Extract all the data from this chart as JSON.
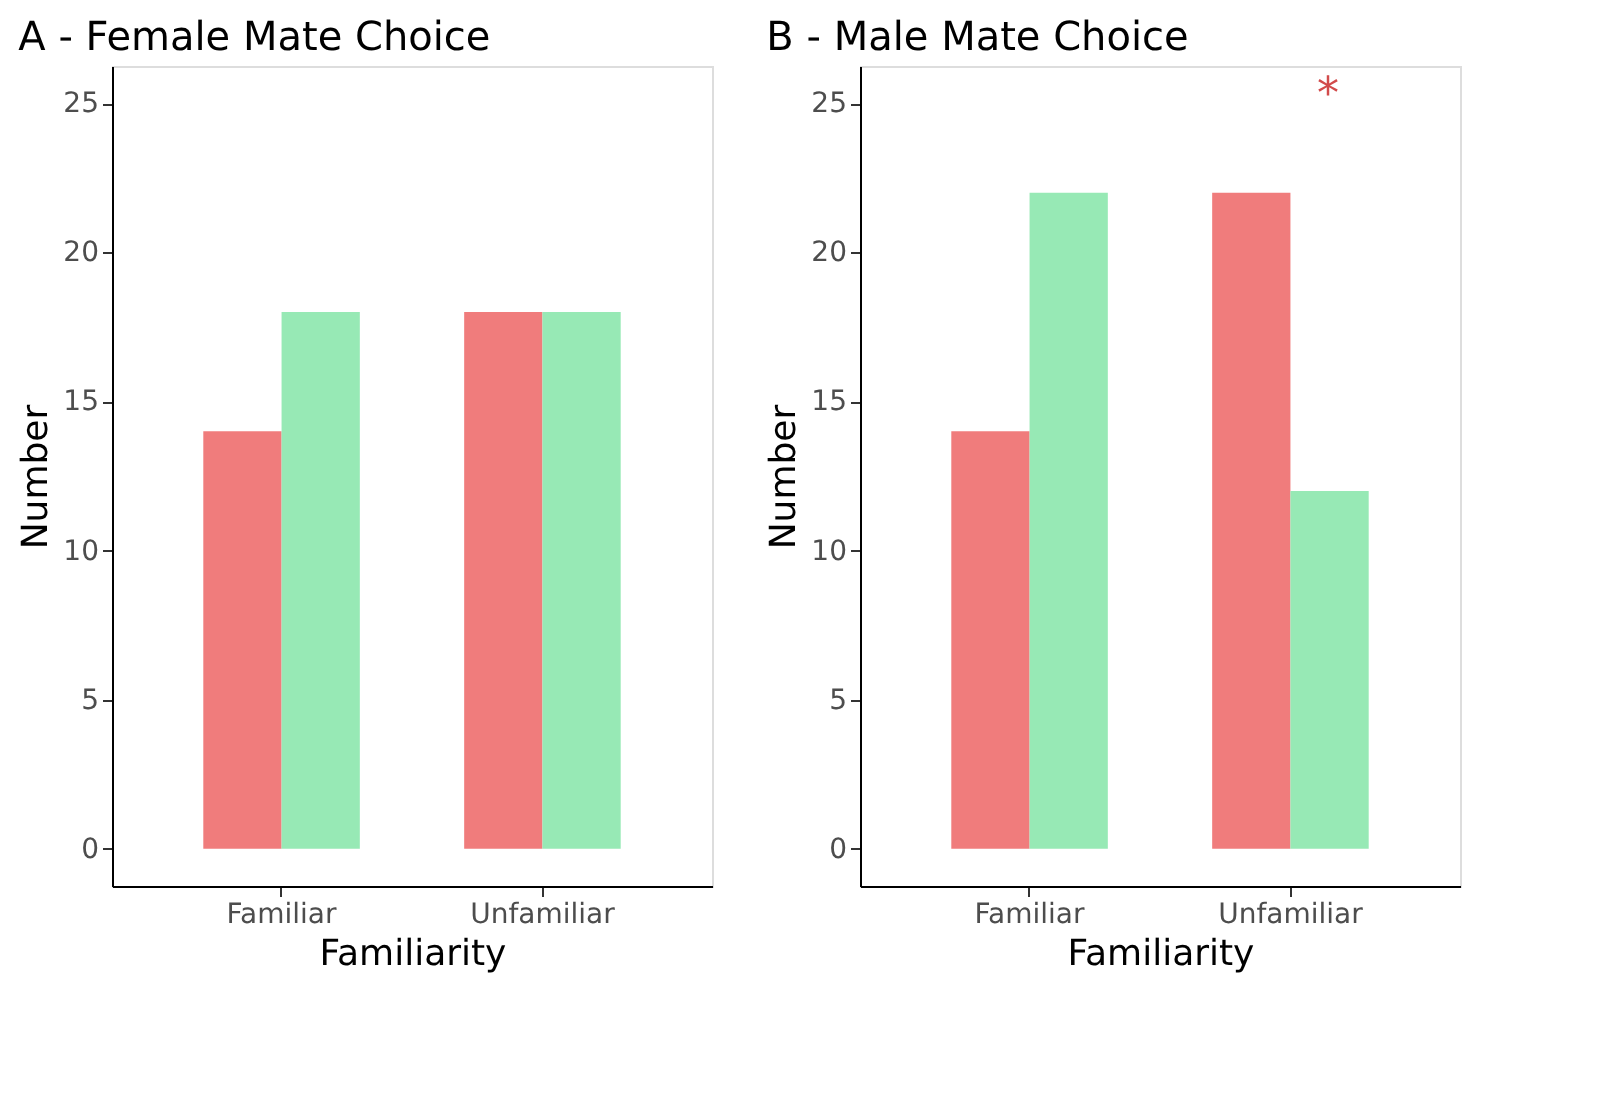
{
  "chart_data": [
    {
      "type": "bar",
      "title": "A - Female Mate Choice",
      "xlabel": "Familiarity",
      "ylabel": "Number",
      "categories": [
        "Familiar",
        "Unfamiliar"
      ],
      "series": [
        {
          "color": "#f07c7c",
          "values": [
            14,
            18
          ]
        },
        {
          "color": "#97e9b5",
          "values": [
            18,
            18
          ]
        }
      ],
      "ylim": [
        -1.25,
        26.25
      ],
      "yticks": [
        0,
        5,
        10,
        15,
        20,
        25
      ],
      "grid": false
    },
    {
      "type": "bar",
      "title": "B - Male Mate Choice",
      "xlabel": "Familiarity",
      "ylabel": "Number",
      "categories": [
        "Familiar",
        "Unfamiliar"
      ],
      "series": [
        {
          "color": "#f07c7c",
          "values": [
            14,
            22
          ]
        },
        {
          "color": "#97e9b5",
          "values": [
            22,
            12
          ]
        }
      ],
      "ylim": [
        -1.25,
        26.25
      ],
      "yticks": [
        0,
        5,
        10,
        15,
        20,
        25
      ],
      "grid": false,
      "annotations": [
        "*"
      ]
    }
  ]
}
